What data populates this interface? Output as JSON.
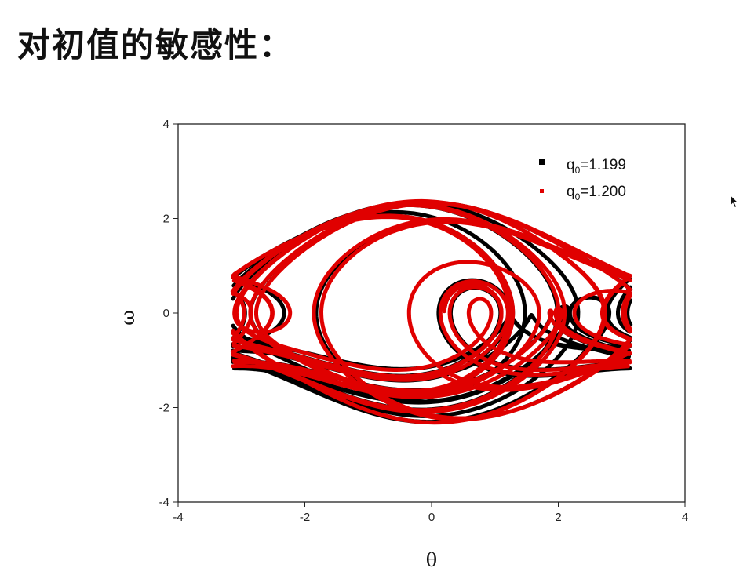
{
  "slide": {
    "title": "对初值的敏感性："
  },
  "chart_data": {
    "type": "line",
    "xlabel": "θ",
    "ylabel": "ω",
    "xlim": [
      -4,
      4
    ],
    "ylim": [
      -4,
      4
    ],
    "x_ticks": [
      -4,
      -2,
      0,
      2,
      4
    ],
    "y_ticks": [
      -4,
      -2,
      0,
      2,
      4
    ],
    "legend_position": "top-right",
    "grid": false,
    "series": [
      {
        "name_base": "q",
        "name_sub": "0",
        "name_value": "=1.199",
        "color": "#000000",
        "description_points": [
          [
            -3.14,
            1.1
          ],
          [
            -2.2,
            1.6
          ],
          [
            -1.2,
            2.05
          ],
          [
            0,
            2.2
          ],
          [
            1.2,
            2.05
          ],
          [
            2.2,
            1.6
          ],
          [
            3.14,
            1.1
          ],
          [
            3.14,
            -0.9
          ],
          [
            2.2,
            -1.5
          ],
          [
            1.0,
            -1.95
          ],
          [
            0,
            -2.05
          ],
          [
            -1.0,
            -1.9
          ],
          [
            -2.2,
            -1.4
          ],
          [
            -3.14,
            -0.9
          ]
        ]
      },
      {
        "name_base": "q",
        "name_sub": "0",
        "name_value": "=1.200",
        "color": "#e00000",
        "description_points": [
          [
            -3.14,
            0.8
          ],
          [
            -2.2,
            1.55
          ],
          [
            -1.2,
            2.1
          ],
          [
            0,
            2.3
          ],
          [
            1.2,
            2.1
          ],
          [
            2.2,
            1.55
          ],
          [
            3.14,
            0.8
          ],
          [
            3.14,
            -1.05
          ],
          [
            2.2,
            -1.75
          ],
          [
            1.0,
            -2.25
          ],
          [
            0,
            -2.35
          ],
          [
            -1.0,
            -2.2
          ],
          [
            -2.2,
            -1.7
          ],
          [
            -3.14,
            -1.05
          ]
        ]
      }
    ]
  }
}
